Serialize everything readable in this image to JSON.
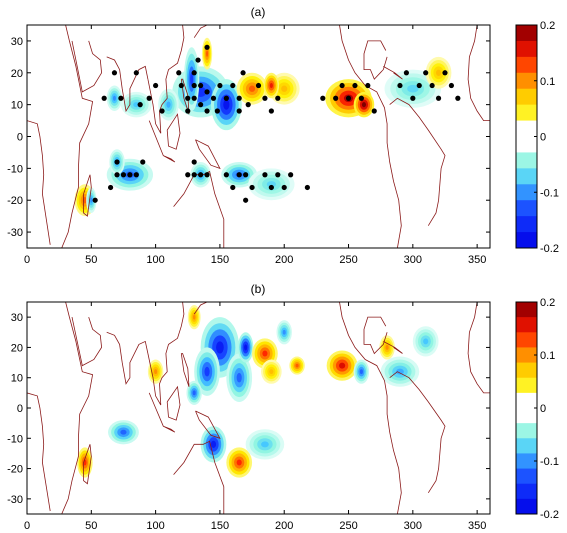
{
  "chart_data": [
    {
      "panel_label": "(a)",
      "type": "heatmap",
      "xlim": [
        0,
        360
      ],
      "ylim": [
        -35,
        35
      ],
      "x_ticks": [
        0,
        50,
        100,
        150,
        200,
        250,
        300,
        350
      ],
      "y_ticks": [
        -30,
        -20,
        -10,
        0,
        10,
        20,
        30
      ],
      "x_tick_labels": [
        "0",
        "50",
        "100",
        "150",
        "200",
        "250",
        "300",
        "350"
      ],
      "y_tick_labels": [
        "-30",
        "-20",
        "-10",
        "0",
        "10",
        "20",
        "30"
      ],
      "colorbar": {
        "range": [
          -0.2,
          0.2
        ],
        "ticks": [
          0.2,
          0.1,
          0,
          -0.1,
          -0.2
        ],
        "tick_labels": [
          "0.2",
          "0.1",
          "0",
          "-0.1",
          "-0.2"
        ]
      },
      "blobs": [
        {
          "lon": 135,
          "lat": 14,
          "rx": 22,
          "ry": 8,
          "v": -0.15
        },
        {
          "lon": 155,
          "lat": 10,
          "rx": 12,
          "ry": 8,
          "v": -0.18
        },
        {
          "lon": 128,
          "lat": 18,
          "rx": 6,
          "ry": 10,
          "v": -0.14
        },
        {
          "lon": 110,
          "lat": 10,
          "rx": 8,
          "ry": 5,
          "v": -0.09
        },
        {
          "lon": 85,
          "lat": 10,
          "rx": 12,
          "ry": 4,
          "v": -0.08
        },
        {
          "lon": 68,
          "lat": 12,
          "rx": 6,
          "ry": 4,
          "v": -0.1
        },
        {
          "lon": 175,
          "lat": 15,
          "rx": 12,
          "ry": 5,
          "v": 0.12
        },
        {
          "lon": 200,
          "lat": 15,
          "rx": 12,
          "ry": 5,
          "v": 0.08
        },
        {
          "lon": 190,
          "lat": 16,
          "rx": 6,
          "ry": 4,
          "v": 0.15
        },
        {
          "lon": 250,
          "lat": 12,
          "rx": 18,
          "ry": 6,
          "v": 0.18
        },
        {
          "lon": 262,
          "lat": 10,
          "rx": 8,
          "ry": 4,
          "v": 0.2
        },
        {
          "lon": 300,
          "lat": 15,
          "rx": 22,
          "ry": 6,
          "v": -0.07
        },
        {
          "lon": 320,
          "lat": 20,
          "rx": 10,
          "ry": 5,
          "v": 0.08
        },
        {
          "lon": 140,
          "lat": 26,
          "rx": 4,
          "ry": 5,
          "v": 0.12
        },
        {
          "lon": 80,
          "lat": -12,
          "rx": 18,
          "ry": 5,
          "v": -0.12
        },
        {
          "lon": 70,
          "lat": -8,
          "rx": 6,
          "ry": 4,
          "v": -0.1
        },
        {
          "lon": 45,
          "lat": -20,
          "rx": 8,
          "ry": 5,
          "v": 0.12
        },
        {
          "lon": 165,
          "lat": -12,
          "rx": 14,
          "ry": 4,
          "v": -0.12
        },
        {
          "lon": 190,
          "lat": -15,
          "rx": 18,
          "ry": 5,
          "v": -0.07
        },
        {
          "lon": 135,
          "lat": -12,
          "rx": 8,
          "ry": 4,
          "v": -0.1
        },
        {
          "lon": 50,
          "lat": -20,
          "rx": 4,
          "ry": 4,
          "v": -0.1
        }
      ],
      "significant_points": [
        [
          68,
          20
        ],
        [
          73,
          12
        ],
        [
          85,
          20
        ],
        [
          88,
          10
        ],
        [
          95,
          12
        ],
        [
          100,
          16
        ],
        [
          105,
          8
        ],
        [
          118,
          20
        ],
        [
          120,
          16
        ],
        [
          125,
          12
        ],
        [
          125,
          8
        ],
        [
          130,
          20
        ],
        [
          130,
          16
        ],
        [
          130,
          12
        ],
        [
          133,
          24
        ],
        [
          135,
          16
        ],
        [
          135,
          10
        ],
        [
          140,
          14
        ],
        [
          140,
          8
        ],
        [
          145,
          12
        ],
        [
          148,
          8
        ],
        [
          150,
          16
        ],
        [
          155,
          12
        ],
        [
          160,
          16
        ],
        [
          165,
          8
        ],
        [
          165,
          12
        ],
        [
          168,
          20
        ],
        [
          172,
          10
        ],
        [
          180,
          16
        ],
        [
          185,
          12
        ],
        [
          190,
          8
        ],
        [
          195,
          12
        ],
        [
          230,
          12
        ],
        [
          240,
          12
        ],
        [
          245,
          16
        ],
        [
          250,
          12
        ],
        [
          255,
          16
        ],
        [
          260,
          12
        ],
        [
          265,
          16
        ],
        [
          270,
          8
        ],
        [
          290,
          16
        ],
        [
          295,
          20
        ],
        [
          300,
          12
        ],
        [
          305,
          16
        ],
        [
          310,
          20
        ],
        [
          315,
          16
        ],
        [
          320,
          12
        ],
        [
          325,
          20
        ],
        [
          330,
          16
        ],
        [
          335,
          12
        ],
        [
          140,
          28
        ],
        [
          60,
          12
        ],
        [
          70,
          -8
        ],
        [
          75,
          -12
        ],
        [
          80,
          -12
        ],
        [
          85,
          -12
        ],
        [
          90,
          -8
        ],
        [
          70,
          -12
        ],
        [
          65,
          -16
        ],
        [
          53,
          -20
        ],
        [
          125,
          -12
        ],
        [
          130,
          -8
        ],
        [
          130,
          -12
        ],
        [
          135,
          -12
        ],
        [
          140,
          -12
        ],
        [
          155,
          -12
        ],
        [
          160,
          -16
        ],
        [
          165,
          -12
        ],
        [
          170,
          -12
        ],
        [
          175,
          -16
        ],
        [
          185,
          -12
        ],
        [
          190,
          -16
        ],
        [
          195,
          -12
        ],
        [
          200,
          -16
        ],
        [
          205,
          -12
        ],
        [
          218,
          -16
        ],
        [
          170,
          -20
        ]
      ]
    },
    {
      "panel_label": "(b)",
      "type": "heatmap",
      "xlim": [
        0,
        360
      ],
      "ylim": [
        -35,
        35
      ],
      "x_ticks": [
        0,
        50,
        100,
        150,
        200,
        250,
        300,
        350
      ],
      "y_ticks": [
        -30,
        -20,
        -10,
        0,
        10,
        20,
        30
      ],
      "x_tick_labels": [
        "0",
        "50",
        "100",
        "150",
        "200",
        "250",
        "300",
        "350"
      ],
      "y_tick_labels": [
        "-30",
        "-20",
        "-10",
        "0",
        "10",
        "20",
        "30"
      ],
      "colorbar": {
        "range": [
          -0.2,
          0.2
        ],
        "ticks": [
          0.2,
          0.1,
          0,
          -0.1,
          -0.2
        ],
        "tick_labels": [
          "0.2",
          "0.1",
          "0",
          "-0.1",
          "-0.2"
        ]
      },
      "blobs": [
        {
          "lon": 150,
          "lat": 20,
          "rx": 15,
          "ry": 10,
          "v": -0.17
        },
        {
          "lon": 140,
          "lat": 12,
          "rx": 10,
          "ry": 8,
          "v": -0.14
        },
        {
          "lon": 165,
          "lat": 10,
          "rx": 10,
          "ry": 8,
          "v": -0.12
        },
        {
          "lon": 170,
          "lat": 20,
          "rx": 6,
          "ry": 5,
          "v": -0.18
        },
        {
          "lon": 185,
          "lat": 18,
          "rx": 10,
          "ry": 5,
          "v": 0.14
        },
        {
          "lon": 190,
          "lat": 12,
          "rx": 8,
          "ry": 4,
          "v": 0.08
        },
        {
          "lon": 130,
          "lat": 5,
          "rx": 6,
          "ry": 4,
          "v": -0.12
        },
        {
          "lon": 200,
          "lat": 25,
          "rx": 6,
          "ry": 4,
          "v": -0.1
        },
        {
          "lon": 210,
          "lat": 14,
          "rx": 6,
          "ry": 3,
          "v": 0.12
        },
        {
          "lon": 245,
          "lat": 14,
          "rx": 12,
          "ry": 5,
          "v": 0.16
        },
        {
          "lon": 260,
          "lat": 12,
          "rx": 6,
          "ry": 4,
          "v": -0.12
        },
        {
          "lon": 290,
          "lat": 12,
          "rx": 15,
          "ry": 5,
          "v": -0.09
        },
        {
          "lon": 310,
          "lat": 22,
          "rx": 10,
          "ry": 5,
          "v": -0.08
        },
        {
          "lon": 280,
          "lat": 20,
          "rx": 6,
          "ry": 4,
          "v": 0.1
        },
        {
          "lon": 75,
          "lat": -8,
          "rx": 12,
          "ry": 4,
          "v": -0.12
        },
        {
          "lon": 45,
          "lat": -18,
          "rx": 6,
          "ry": 5,
          "v": 0.14
        },
        {
          "lon": 145,
          "lat": -12,
          "rx": 10,
          "ry": 6,
          "v": -0.17
        },
        {
          "lon": 165,
          "lat": -18,
          "rx": 10,
          "ry": 5,
          "v": 0.14
        },
        {
          "lon": 185,
          "lat": -12,
          "rx": 15,
          "ry": 5,
          "v": -0.08
        },
        {
          "lon": 100,
          "lat": 12,
          "rx": 6,
          "ry": 4,
          "v": 0.1
        },
        {
          "lon": 130,
          "lat": 30,
          "rx": 5,
          "ry": 4,
          "v": 0.1
        }
      ]
    }
  ]
}
